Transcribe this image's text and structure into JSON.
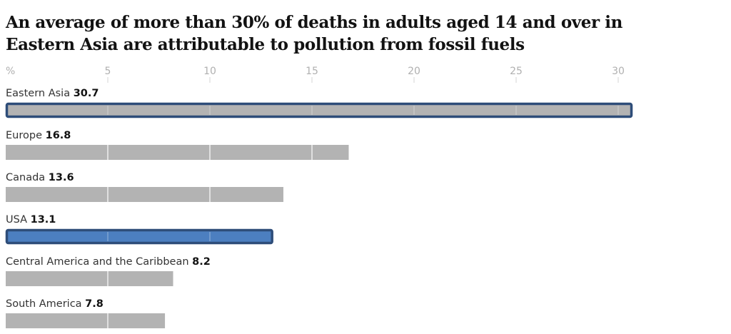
{
  "chart_data": {
    "type": "bar",
    "orientation": "horizontal",
    "title": "An average of more than 30% of deaths in adults aged 14 and over in Eastern Asia are attributable to pollution from fossil fuels",
    "unit_label": "%",
    "xlim": [
      0,
      30.7
    ],
    "xticks": [
      5,
      10,
      15,
      20,
      25,
      30
    ],
    "grid": true,
    "categories": [
      "Eastern Asia",
      "Europe",
      "Canada",
      "USA",
      "Central America and the Caribbean",
      "South America"
    ],
    "values": [
      30.7,
      16.8,
      13.6,
      13.1,
      8.2,
      7.8
    ],
    "value_labels": [
      "30.7",
      "16.8",
      "13.6",
      "13.1",
      "8.2",
      "7.8"
    ],
    "highlighted": [
      "Eastern Asia",
      "USA"
    ],
    "colors": {
      "bar": "#b3b3b3",
      "highlight_stroke": "#2e4d79",
      "usa_fill": "#4c7fc0",
      "gridline": "#ffffff",
      "axis_tick": "#d6d6d6"
    }
  }
}
